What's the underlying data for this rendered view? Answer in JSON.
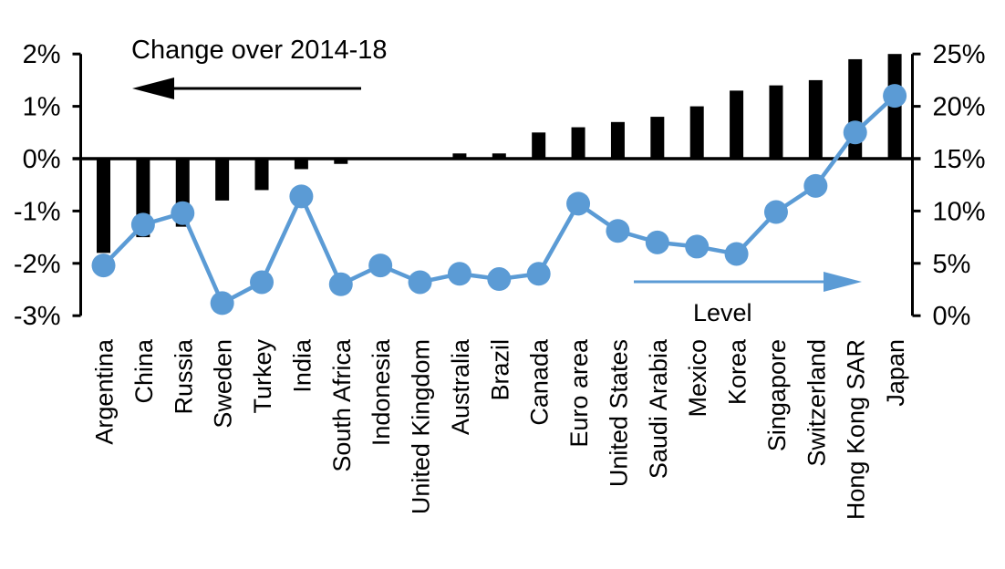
{
  "chart_data": {
    "type": "bar+line",
    "title": "",
    "categories": [
      "Argentina",
      "China",
      "Russia",
      "Sweden",
      "Turkey",
      "India",
      "South Africa",
      "Indonesia",
      "United Kingdom",
      "Australia",
      "Brazil",
      "Canada",
      "Euro area",
      "United States",
      "Saudi Arabia",
      "Mexico",
      "Korea",
      "Singapore",
      "Switzerland",
      "Hong Kong SAR",
      "Japan"
    ],
    "series": [
      {
        "name": "Change over 2014-18",
        "type": "bar",
        "axis": "left",
        "color": "#000000",
        "values": [
          -1.8,
          -1.5,
          -1.3,
          -0.8,
          -0.6,
          -0.2,
          -0.1,
          0,
          0,
          0.1,
          0.1,
          0.5,
          0.6,
          0.7,
          0.8,
          1.0,
          1.3,
          1.4,
          1.5,
          1.9,
          2.0
        ]
      },
      {
        "name": "Level",
        "type": "line",
        "axis": "right",
        "color": "#5B9BD5",
        "values": [
          4.8,
          8.7,
          9.8,
          1.2,
          3.2,
          11.4,
          3.0,
          4.8,
          3.2,
          4.0,
          3.5,
          4.0,
          10.7,
          8.1,
          7.0,
          6.6,
          5.9,
          9.9,
          12.4,
          17.5,
          21.0
        ]
      }
    ],
    "left_axis": {
      "tick_labels": [
        "2%",
        "1%",
        "0%",
        "-1%",
        "-2%",
        "-3%"
      ],
      "tick_values": [
        2,
        1,
        0,
        -1,
        -2,
        -3
      ],
      "min": -3,
      "max": 2
    },
    "right_axis": {
      "tick_labels": [
        "25%",
        "20%",
        "15%",
        "10%",
        "5%",
        "0%"
      ],
      "tick_values": [
        25,
        20,
        15,
        10,
        5,
        0
      ],
      "min": 0,
      "max": 25
    },
    "annotations": {
      "change_label": "Change over 2014-18",
      "change_arrow_direction": "left",
      "change_arrow_color": "#000000",
      "level_label": "Level",
      "level_arrow_direction": "right",
      "level_arrow_color": "#5B9BD5"
    },
    "grid": "off",
    "legend_position": "as-annotations-inside-plot"
  }
}
